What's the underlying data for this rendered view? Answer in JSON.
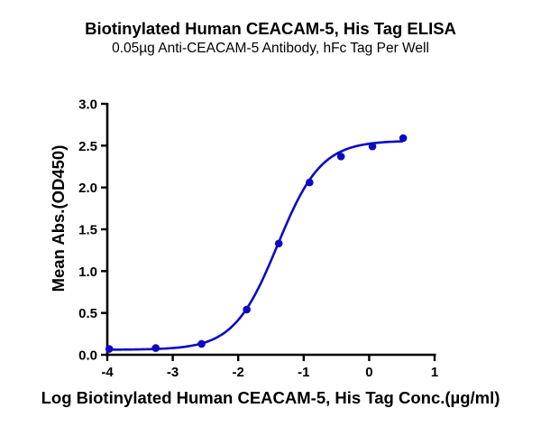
{
  "chart": {
    "title": "Biotinylated Human CEACAM-5, His Tag ELISA",
    "subtitle": "0.05µg Anti-CEACAM-5 Antibody, hFc Tag Per Well",
    "xlabel": "Log Biotinylated Human CEACAM-5, His Tag Conc.(µg/ml)",
    "ylabel": "Mean Abs.(OD450)",
    "series_color": "#0a0ac4"
  },
  "chart_data": {
    "type": "scatter",
    "title": "Biotinylated Human CEACAM-5, His Tag ELISA",
    "subtitle": "0.05µg Anti-CEACAM-5 Antibody, hFc Tag Per Well",
    "xlabel": "Log Biotinylated Human CEACAM-5, His Tag Conc.(µg/ml)",
    "ylabel": "Mean Abs.(OD450)",
    "xlim": [
      -4,
      1
    ],
    "ylim": [
      0,
      3.0
    ],
    "xticks": [
      -4,
      -3,
      -2,
      -1,
      0,
      1
    ],
    "yticks": [
      0.0,
      0.5,
      1.0,
      1.5,
      2.0,
      2.5,
      3.0
    ],
    "xtick_labels": [
      "-4",
      "-3",
      "-2",
      "-1",
      "0",
      "1"
    ],
    "ytick_labels": [
      "0.0",
      "0.5",
      "1.0",
      "1.5",
      "2.0",
      "2.5",
      "3.0"
    ],
    "grid": false,
    "legend": null,
    "series": [
      {
        "name": "Mean Abs.(OD450)",
        "x": [
          -3.97,
          -3.26,
          -2.56,
          -1.87,
          -1.38,
          -0.91,
          -0.43,
          0.05,
          0.52
        ],
        "y": [
          0.07,
          0.08,
          0.13,
          0.54,
          1.33,
          2.06,
          2.37,
          2.49,
          2.59
        ]
      }
    ],
    "fit": {
      "model": "4PL sigmoidal",
      "bottom": 0.06,
      "top": 2.56,
      "logEC50": -1.4,
      "hill": 1.3,
      "x_range": [
        -3.97,
        0.52
      ]
    }
  }
}
